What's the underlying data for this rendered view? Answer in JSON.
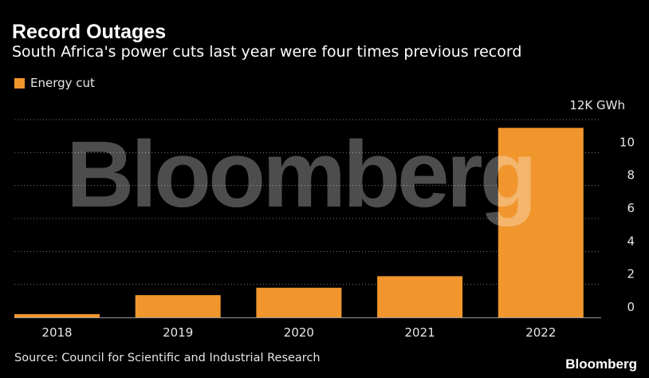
{
  "chart_data": {
    "type": "bar",
    "title": "Record Outages",
    "subtitle": "South Africa's power cuts last year were four times previous record",
    "unit_label": "12K GWh",
    "categories": [
      "2018",
      "2019",
      "2020",
      "2021",
      "2022"
    ],
    "series": [
      {
        "name": "Energy cut",
        "values": [
          0.2,
          1.35,
          1.8,
          2.5,
          11.5
        ]
      }
    ],
    "ylim": [
      0,
      12
    ],
    "yticks": [
      0,
      2,
      4,
      6,
      8,
      10,
      12
    ],
    "ytick_labels": [
      "0",
      "2",
      "4",
      "6",
      "8",
      "10",
      ""
    ],
    "grid": true,
    "legend": "top-left",
    "bar_color": "#f0962d",
    "source": "Source: Council for Scientific and Industrial Research"
  },
  "watermark": "Bloomberg",
  "brand": "Bloomberg"
}
